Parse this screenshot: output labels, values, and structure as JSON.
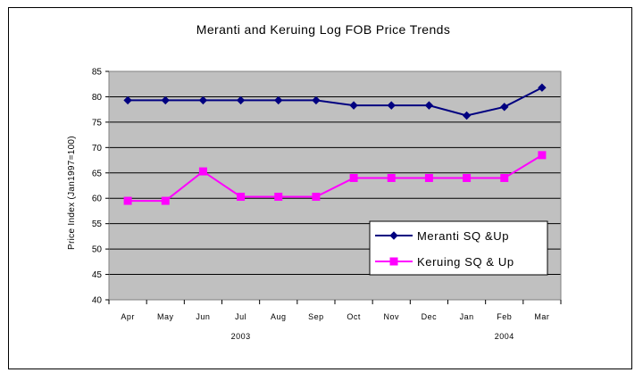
{
  "chart_data": {
    "type": "line",
    "title": "Meranti and Keruing Log FOB Price Trends",
    "ylabel": "Price Index (Jan1997=100)",
    "xlabel": "",
    "ylim": [
      40,
      85
    ],
    "yticks": [
      40,
      45,
      50,
      55,
      60,
      65,
      70,
      75,
      80,
      85
    ],
    "categories": [
      "Apr",
      "May",
      "Jun",
      "Jul",
      "Aug",
      "Sep",
      "Oct",
      "Nov",
      "Dec",
      "Jan",
      "Feb",
      "Mar"
    ],
    "year_labels": [
      {
        "label": "2003",
        "category": "Jul"
      },
      {
        "label": "2004",
        "category": "Feb"
      }
    ],
    "grid": "horizontal",
    "legend_position": "right-bottom",
    "series": [
      {
        "name": "Meranti SQ &Up",
        "color": "#000080",
        "marker": "diamond",
        "values": [
          79.3,
          79.3,
          79.3,
          79.3,
          79.3,
          79.3,
          78.3,
          78.3,
          78.3,
          76.3,
          78.0,
          81.8
        ]
      },
      {
        "name": "Keruing SQ & Up",
        "color": "#FF00FF",
        "marker": "square",
        "values": [
          59.5,
          59.5,
          65.3,
          60.3,
          60.3,
          60.3,
          64.0,
          64.0,
          64.0,
          64.0,
          64.0,
          68.5
        ]
      }
    ]
  }
}
